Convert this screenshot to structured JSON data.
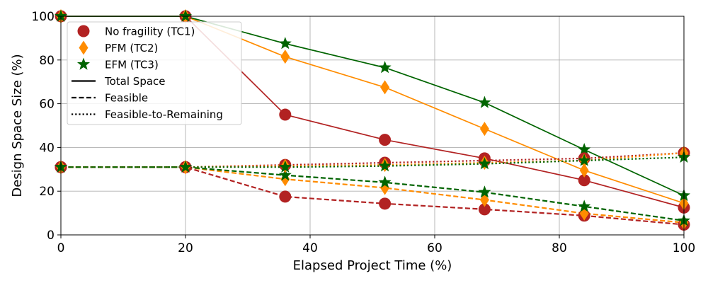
{
  "chart_data": {
    "type": "line",
    "xlabel": "Elapsed Project Time (%)",
    "ylabel": "Design Space Size (%)",
    "xlim": [
      0,
      100
    ],
    "ylim": [
      0,
      100
    ],
    "xticks": [
      0,
      20,
      40,
      60,
      80,
      100
    ],
    "yticks": [
      0,
      20,
      40,
      60,
      80,
      100
    ],
    "grid": true,
    "legend_position": "top-left",
    "x": [
      0,
      20,
      36,
      52,
      68,
      84,
      100
    ],
    "series": [
      {
        "name": "No fragility (TC1)",
        "marker": "circle",
        "color": "#b22222",
        "group": "TC1",
        "linestyle": "solid",
        "values": [
          100,
          100,
          55,
          43.5,
          35,
          25,
          12.5
        ]
      },
      {
        "name": "PFM (TC2)",
        "marker": "diamond",
        "color": "#ff8c00",
        "group": "TC2",
        "linestyle": "solid",
        "values": [
          100,
          100,
          81.5,
          67.5,
          48.5,
          29.5,
          14.5
        ]
      },
      {
        "name": "EFM (TC3)",
        "marker": "star",
        "color": "#006400",
        "group": "TC3",
        "linestyle": "solid",
        "values": [
          100,
          100,
          87.5,
          76.5,
          60.5,
          39,
          18
        ]
      },
      {
        "name": "",
        "marker": "circle",
        "color": "#b22222",
        "group": "TC1",
        "linestyle": "dashed",
        "values": [
          31,
          31,
          17.5,
          14.3,
          11.7,
          8.8,
          4.7
        ]
      },
      {
        "name": "",
        "marker": "diamond",
        "color": "#ff8c00",
        "group": "TC2",
        "linestyle": "dashed",
        "values": [
          31,
          31,
          25.5,
          21.5,
          16,
          9.8,
          5.6
        ]
      },
      {
        "name": "",
        "marker": "star",
        "color": "#006400",
        "group": "TC3",
        "linestyle": "dashed",
        "values": [
          31,
          31,
          27.3,
          24,
          19.5,
          13,
          6.5
        ]
      },
      {
        "name": "",
        "marker": "circle",
        "color": "#b22222",
        "group": "TC1",
        "linestyle": "dotted",
        "values": [
          31,
          31,
          32,
          33,
          34,
          35,
          37.5
        ]
      },
      {
        "name": "",
        "marker": "diamond",
        "color": "#ff8c00",
        "group": "TC2",
        "linestyle": "dotted",
        "values": [
          31,
          31,
          31.5,
          32,
          33,
          34,
          37.5
        ]
      },
      {
        "name": "",
        "marker": "star",
        "color": "#006400",
        "group": "TC3",
        "linestyle": "dotted",
        "values": [
          31,
          31,
          31,
          31.5,
          32.5,
          34,
          35.5
        ]
      }
    ],
    "legend": {
      "markers": [
        {
          "label": "No fragility (TC1)",
          "marker": "circle",
          "color": "#b22222"
        },
        {
          "label": "PFM (TC2)",
          "marker": "diamond",
          "color": "#ff8c00"
        },
        {
          "label": "EFM (TC3)",
          "marker": "star",
          "color": "#006400"
        }
      ],
      "linestyles": [
        {
          "label": "Total Space",
          "linestyle": "solid"
        },
        {
          "label": "Feasible",
          "linestyle": "dashed"
        },
        {
          "label": "Feasible-to-Remaining",
          "linestyle": "dotted"
        }
      ]
    }
  }
}
